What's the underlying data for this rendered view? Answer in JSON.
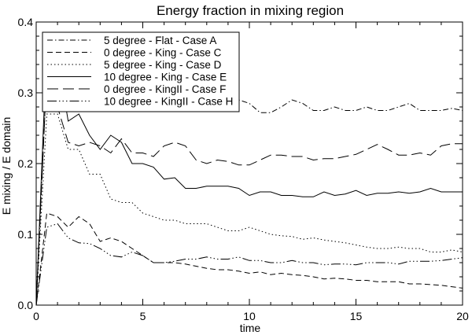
{
  "chart_data": {
    "type": "line",
    "title": "Energy fraction in mixing region",
    "xlabel": "time",
    "ylabel": "E mixing / E domain",
    "xlim": [
      0,
      20
    ],
    "ylim": [
      0,
      0.4
    ],
    "xticks": [
      0,
      5,
      10,
      15,
      20
    ],
    "xtick_labels": [
      "0",
      "5",
      "10",
      "15",
      "20"
    ],
    "yticks": [
      0,
      0.1,
      0.2,
      0.3,
      0.4
    ],
    "ytick_labels": [
      "0.0",
      "0.1",
      "0.2",
      "0.3",
      "0.4"
    ],
    "grid": false,
    "legend_position": "top-left",
    "series": [
      {
        "name": "5 degree - Flat - Case A",
        "dash": "dashdot",
        "points": [
          [
            0,
            0
          ],
          [
            0.5,
            0.33
          ],
          [
            1,
            0.3
          ],
          [
            1.5,
            0.32
          ],
          [
            2,
            0.295
          ],
          [
            2.5,
            0.29
          ],
          [
            3,
            0.29
          ],
          [
            3.5,
            0.3
          ],
          [
            4,
            0.3
          ],
          [
            4.5,
            0.29
          ],
          [
            5,
            0.285
          ],
          [
            5.5,
            0.285
          ],
          [
            6,
            0.28
          ],
          [
            6.5,
            0.285
          ],
          [
            7,
            0.29
          ],
          [
            7.5,
            0.29
          ],
          [
            8,
            0.29
          ],
          [
            8.5,
            0.285
          ],
          [
            9,
            0.285
          ],
          [
            9.5,
            0.29
          ],
          [
            10,
            0.285
          ],
          [
            10.5,
            0.272
          ],
          [
            11,
            0.272
          ],
          [
            11.5,
            0.28
          ],
          [
            12,
            0.29
          ],
          [
            12.5,
            0.285
          ],
          [
            13,
            0.275
          ],
          [
            13.5,
            0.275
          ],
          [
            14,
            0.28
          ],
          [
            14.5,
            0.275
          ],
          [
            15,
            0.275
          ],
          [
            15.5,
            0.28
          ],
          [
            16,
            0.275
          ],
          [
            16.5,
            0.275
          ],
          [
            17,
            0.28
          ],
          [
            17.5,
            0.285
          ],
          [
            18,
            0.275
          ],
          [
            18.5,
            0.275
          ],
          [
            19,
            0.275
          ],
          [
            19.5,
            0.278
          ],
          [
            20,
            0.275
          ]
        ]
      },
      {
        "name": "0 degree - King - Case C",
        "dash": "dashed",
        "points": [
          [
            0,
            0
          ],
          [
            0.5,
            0.13
          ],
          [
            1,
            0.125
          ],
          [
            1.5,
            0.11
          ],
          [
            2,
            0.125
          ],
          [
            2.5,
            0.115
          ],
          [
            3,
            0.09
          ],
          [
            3.5,
            0.095
          ],
          [
            4,
            0.09
          ],
          [
            4.5,
            0.08
          ],
          [
            5,
            0.07
          ],
          [
            5.5,
            0.06
          ],
          [
            6,
            0.06
          ],
          [
            6.5,
            0.06
          ],
          [
            7,
            0.058
          ],
          [
            7.5,
            0.055
          ],
          [
            8,
            0.052
          ],
          [
            8.5,
            0.05
          ],
          [
            9,
            0.05
          ],
          [
            9.5,
            0.048
          ],
          [
            10,
            0.045
          ],
          [
            10.5,
            0.047
          ],
          [
            11,
            0.043
          ],
          [
            11.5,
            0.045
          ],
          [
            12,
            0.043
          ],
          [
            12.5,
            0.042
          ],
          [
            13,
            0.04
          ],
          [
            13.5,
            0.037
          ],
          [
            14,
            0.038
          ],
          [
            14.5,
            0.037
          ],
          [
            15,
            0.035
          ],
          [
            15.5,
            0.035
          ],
          [
            16,
            0.033
          ],
          [
            16.5,
            0.033
          ],
          [
            17,
            0.033
          ],
          [
            17.5,
            0.03
          ],
          [
            18,
            0.03
          ],
          [
            18.5,
            0.029
          ],
          [
            19,
            0.028
          ],
          [
            19.5,
            0.026
          ],
          [
            20,
            0.024
          ]
        ]
      },
      {
        "name": "5 degree - King - Case D",
        "dash": "dotted",
        "points": [
          [
            0,
            0
          ],
          [
            0.5,
            0.27
          ],
          [
            1,
            0.27
          ],
          [
            1.5,
            0.22
          ],
          [
            2,
            0.22
          ],
          [
            2.5,
            0.185
          ],
          [
            3,
            0.185
          ],
          [
            3.5,
            0.15
          ],
          [
            4,
            0.145
          ],
          [
            4.5,
            0.145
          ],
          [
            5,
            0.13
          ],
          [
            5.5,
            0.125
          ],
          [
            6,
            0.12
          ],
          [
            6.5,
            0.12
          ],
          [
            7,
            0.115
          ],
          [
            7.5,
            0.115
          ],
          [
            8,
            0.115
          ],
          [
            8.5,
            0.11
          ],
          [
            9,
            0.105
          ],
          [
            9.5,
            0.105
          ],
          [
            10,
            0.11
          ],
          [
            10.5,
            0.105
          ],
          [
            11,
            0.1
          ],
          [
            11.5,
            0.098
          ],
          [
            12,
            0.097
          ],
          [
            12.5,
            0.093
          ],
          [
            13,
            0.095
          ],
          [
            13.5,
            0.092
          ],
          [
            14,
            0.09
          ],
          [
            14.5,
            0.088
          ],
          [
            15,
            0.085
          ],
          [
            15.5,
            0.082
          ],
          [
            16,
            0.08
          ],
          [
            16.5,
            0.08
          ],
          [
            17,
            0.082
          ],
          [
            17.5,
            0.08
          ],
          [
            18,
            0.08
          ],
          [
            18.5,
            0.075
          ],
          [
            19,
            0.075
          ],
          [
            19.5,
            0.078
          ],
          [
            20,
            0.075
          ]
        ]
      },
      {
        "name": "10 degree - King - Case E",
        "dash": "solid",
        "points": [
          [
            0,
            0
          ],
          [
            0.5,
            0.37
          ],
          [
            1,
            0.35
          ],
          [
            1.5,
            0.26
          ],
          [
            2,
            0.27
          ],
          [
            2.5,
            0.24
          ],
          [
            3,
            0.22
          ],
          [
            3.5,
            0.24
          ],
          [
            4,
            0.23
          ],
          [
            4.5,
            0.2
          ],
          [
            5,
            0.2
          ],
          [
            5.5,
            0.195
          ],
          [
            6,
            0.178
          ],
          [
            6.5,
            0.18
          ],
          [
            7,
            0.165
          ],
          [
            7.5,
            0.165
          ],
          [
            8,
            0.168
          ],
          [
            8.5,
            0.168
          ],
          [
            9,
            0.168
          ],
          [
            9.5,
            0.165
          ],
          [
            10,
            0.155
          ],
          [
            10.5,
            0.16
          ],
          [
            11,
            0.16
          ],
          [
            11.5,
            0.155
          ],
          [
            12,
            0.155
          ],
          [
            12.5,
            0.153
          ],
          [
            13,
            0.153
          ],
          [
            13.5,
            0.16
          ],
          [
            14,
            0.155
          ],
          [
            14.5,
            0.157
          ],
          [
            15,
            0.162
          ],
          [
            15.5,
            0.155
          ],
          [
            16,
            0.158
          ],
          [
            16.5,
            0.158
          ],
          [
            17,
            0.16
          ],
          [
            17.5,
            0.158
          ],
          [
            18,
            0.16
          ],
          [
            18.5,
            0.165
          ],
          [
            19,
            0.16
          ],
          [
            19.5,
            0.16
          ],
          [
            20,
            0.16
          ]
        ]
      },
      {
        "name": "0 degree - KingII - Case F",
        "dash": "longdash",
        "points": [
          [
            0,
            0
          ],
          [
            0.5,
            0.33
          ],
          [
            1,
            0.28
          ],
          [
            1.5,
            0.23
          ],
          [
            2,
            0.225
          ],
          [
            2.5,
            0.23
          ],
          [
            3,
            0.225
          ],
          [
            3.5,
            0.215
          ],
          [
            4,
            0.235
          ],
          [
            4.5,
            0.215
          ],
          [
            5,
            0.215
          ],
          [
            5.5,
            0.21
          ],
          [
            6,
            0.225
          ],
          [
            6.5,
            0.23
          ],
          [
            7,
            0.225
          ],
          [
            7.5,
            0.205
          ],
          [
            8,
            0.2
          ],
          [
            8.5,
            0.205
          ],
          [
            9,
            0.203
          ],
          [
            9.5,
            0.198
          ],
          [
            10,
            0.198
          ],
          [
            10.5,
            0.205
          ],
          [
            11,
            0.212
          ],
          [
            11.5,
            0.212
          ],
          [
            12,
            0.21
          ],
          [
            12.5,
            0.21
          ],
          [
            13,
            0.205
          ],
          [
            13.5,
            0.207
          ],
          [
            14,
            0.207
          ],
          [
            14.5,
            0.21
          ],
          [
            15,
            0.213
          ],
          [
            15.5,
            0.22
          ],
          [
            16,
            0.227
          ],
          [
            16.5,
            0.22
          ],
          [
            17,
            0.212
          ],
          [
            17.5,
            0.212
          ],
          [
            18,
            0.215
          ],
          [
            18.5,
            0.212
          ],
          [
            19,
            0.225
          ],
          [
            19.5,
            0.228
          ],
          [
            20,
            0.228
          ]
        ]
      },
      {
        "name": "10 degree - KingII - Case H",
        "dash": "dashdotdotdot",
        "points": [
          [
            0,
            0
          ],
          [
            0.5,
            0.11
          ],
          [
            1,
            0.115
          ],
          [
            1.5,
            0.095
          ],
          [
            2,
            0.088
          ],
          [
            2.5,
            0.087
          ],
          [
            3,
            0.08
          ],
          [
            3.5,
            0.07
          ],
          [
            4,
            0.068
          ],
          [
            4.5,
            0.075
          ],
          [
            5,
            0.07
          ],
          [
            5.5,
            0.06
          ],
          [
            6,
            0.06
          ],
          [
            6.5,
            0.062
          ],
          [
            7,
            0.065
          ],
          [
            7.5,
            0.065
          ],
          [
            8,
            0.068
          ],
          [
            8.5,
            0.065
          ],
          [
            9,
            0.065
          ],
          [
            9.5,
            0.068
          ],
          [
            10,
            0.063
          ],
          [
            10.5,
            0.063
          ],
          [
            11,
            0.06
          ],
          [
            11.5,
            0.06
          ],
          [
            12,
            0.063
          ],
          [
            12.5,
            0.06
          ],
          [
            13,
            0.06
          ],
          [
            13.5,
            0.057
          ],
          [
            14,
            0.058
          ],
          [
            14.5,
            0.058
          ],
          [
            15,
            0.057
          ],
          [
            15.5,
            0.06
          ],
          [
            16,
            0.06
          ],
          [
            16.5,
            0.06
          ],
          [
            17,
            0.058
          ],
          [
            17.5,
            0.062
          ],
          [
            18,
            0.062
          ],
          [
            18.5,
            0.062
          ],
          [
            19,
            0.063
          ],
          [
            19.5,
            0.065
          ],
          [
            20,
            0.067
          ]
        ]
      }
    ]
  }
}
